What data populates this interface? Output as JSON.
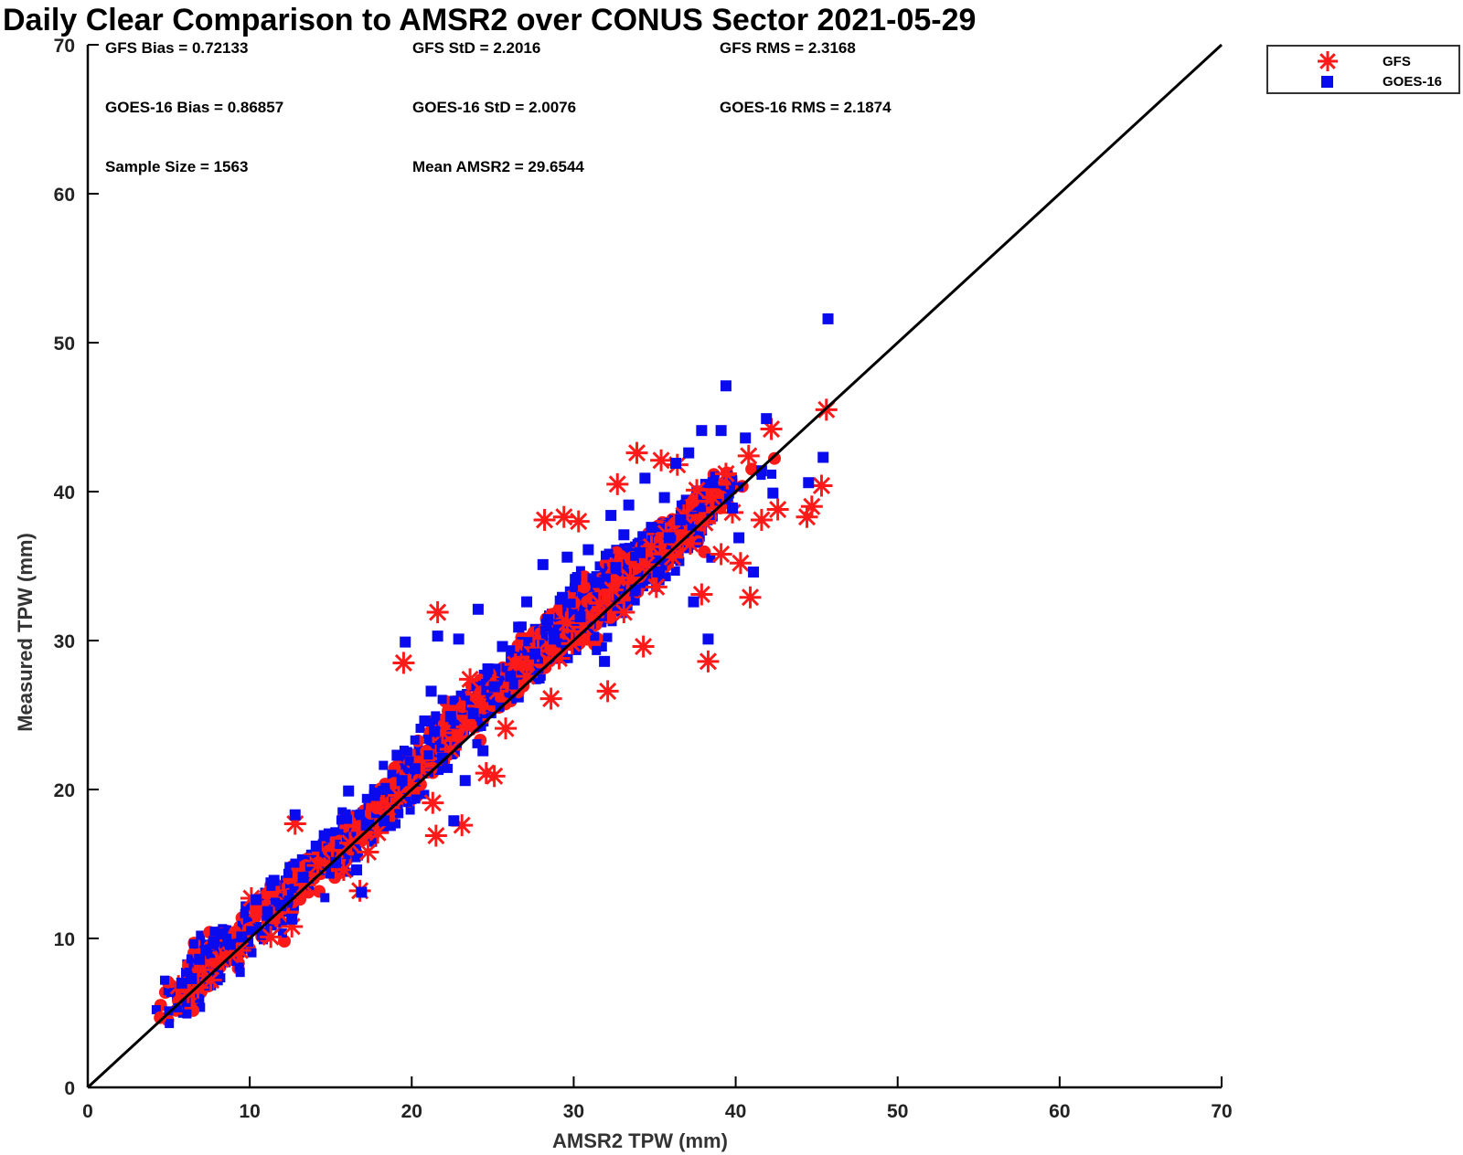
{
  "chart_data": {
    "type": "scatter",
    "title": "Daily Clear Comparison to AMSR2 over CONUS Sector 2021-05-29",
    "xlabel": "AMSR2 TPW (mm)",
    "ylabel": "Measured TPW (mm)",
    "xlim": [
      0,
      70
    ],
    "ylim": [
      0,
      70
    ],
    "xticks": [
      0,
      10,
      20,
      30,
      40,
      50,
      60,
      70
    ],
    "yticks": [
      0,
      10,
      20,
      30,
      40,
      50,
      60,
      70
    ],
    "grid": false,
    "legend_position": "outside-top-right",
    "reference_line": {
      "from": [
        0,
        0
      ],
      "to": [
        70,
        70
      ],
      "color": "#000000"
    },
    "stats": [
      {
        "text": "GFS Bias = 0.72133",
        "row": 0,
        "col": 0
      },
      {
        "text": "GFS StD = 2.2016",
        "row": 0,
        "col": 1
      },
      {
        "text": "GFS RMS = 2.3168",
        "row": 0,
        "col": 2
      },
      {
        "text": "GOES-16 Bias = 0.86857",
        "row": 1,
        "col": 0
      },
      {
        "text": "GOES-16 StD = 2.0076",
        "row": 1,
        "col": 1
      },
      {
        "text": "GOES-16 RMS = 2.1874",
        "row": 1,
        "col": 2
      },
      {
        "text": "Sample Size = 1563",
        "row": 2,
        "col": 0
      },
      {
        "text": "Mean AMSR2 = 29.6544",
        "row": 2,
        "col": 1
      }
    ],
    "series": [
      {
        "name": "GFS",
        "marker": "asterisk",
        "color": "#ff1a1a",
        "points": [
          [
            5.6,
            6.8
          ],
          [
            6.2,
            6.4
          ],
          [
            6.8,
            6.7
          ],
          [
            7.1,
            7.9
          ],
          [
            7.6,
            7.2
          ],
          [
            8.2,
            8.6
          ],
          [
            8.8,
            8.9
          ],
          [
            9.4,
            9.2
          ],
          [
            10.1,
            12.7
          ],
          [
            11.3,
            10.1
          ],
          [
            11.8,
            11.7
          ],
          [
            12.6,
            10.8
          ],
          [
            12.8,
            17.7
          ],
          [
            13.4,
            13.6
          ],
          [
            14.2,
            14.9
          ],
          [
            15.1,
            15.2
          ],
          [
            15.8,
            14.6
          ],
          [
            16.2,
            16.4
          ],
          [
            16.8,
            13.2
          ],
          [
            17.3,
            15.8
          ],
          [
            17.9,
            17.1
          ],
          [
            18.5,
            18.8
          ],
          [
            19.2,
            19.6
          ],
          [
            19.5,
            28.5
          ],
          [
            19.9,
            20.4
          ],
          [
            20.6,
            21.3
          ],
          [
            21.3,
            19.1
          ],
          [
            21.5,
            16.9
          ],
          [
            21.6,
            31.9
          ],
          [
            21.9,
            23.8
          ],
          [
            22.4,
            22.7
          ],
          [
            23.1,
            17.6
          ],
          [
            23.4,
            24.2
          ],
          [
            23.6,
            27.4
          ],
          [
            24.1,
            25.6
          ],
          [
            24.6,
            21.1
          ],
          [
            25.1,
            20.9
          ],
          [
            25.3,
            26.6
          ],
          [
            25.8,
            24.1
          ],
          [
            26.4,
            28.4
          ],
          [
            27.1,
            27.6
          ],
          [
            27.8,
            29.3
          ],
          [
            28.2,
            38.1
          ],
          [
            28.6,
            26.1
          ],
          [
            29.1,
            28.8
          ],
          [
            29.4,
            38.3
          ],
          [
            29.6,
            31.2
          ],
          [
            29.9,
            29.8
          ],
          [
            30.3,
            38.0
          ],
          [
            30.6,
            30.9
          ],
          [
            31.2,
            31.6
          ],
          [
            31.6,
            32.5
          ],
          [
            32.1,
            26.6
          ],
          [
            32.4,
            33.4
          ],
          [
            32.7,
            40.5
          ],
          [
            33.1,
            31.9
          ],
          [
            33.5,
            34.2
          ],
          [
            33.9,
            42.6
          ],
          [
            34.3,
            29.6
          ],
          [
            34.5,
            35.1
          ],
          [
            34.8,
            36.3
          ],
          [
            35.1,
            33.6
          ],
          [
            35.4,
            42.1
          ],
          [
            35.7,
            37.2
          ],
          [
            36.1,
            35.6
          ],
          [
            36.4,
            41.8
          ],
          [
            36.8,
            38.4
          ],
          [
            37.2,
            36.5
          ],
          [
            37.6,
            40.1
          ],
          [
            37.9,
            33.1
          ],
          [
            38.1,
            37.9
          ],
          [
            38.3,
            28.6
          ],
          [
            38.6,
            39.6
          ],
          [
            39.1,
            35.8
          ],
          [
            39.4,
            41.2
          ],
          [
            39.8,
            38.6
          ],
          [
            40.3,
            35.2
          ],
          [
            40.8,
            42.4
          ],
          [
            40.9,
            32.9
          ],
          [
            41.6,
            38.1
          ],
          [
            42.2,
            44.2
          ],
          [
            42.6,
            38.8
          ],
          [
            44.4,
            38.3
          ],
          [
            44.7,
            39.0
          ],
          [
            45.3,
            40.4
          ],
          [
            45.6,
            45.5
          ]
        ]
      },
      {
        "name": "GOES-16",
        "marker": "square",
        "color": "#0a0aee",
        "points": [
          [
            5.8,
            7.0
          ],
          [
            6.4,
            7.3
          ],
          [
            6.9,
            8.6
          ],
          [
            7.3,
            9.2
          ],
          [
            7.8,
            9.8
          ],
          [
            8.3,
            10.3
          ],
          [
            8.8,
            9.6
          ],
          [
            9.5,
            10.1
          ],
          [
            10.4,
            12.6
          ],
          [
            11.1,
            11.8
          ],
          [
            11.5,
            13.9
          ],
          [
            11.9,
            12.2
          ],
          [
            12.6,
            11.3
          ],
          [
            12.8,
            18.3
          ],
          [
            13.3,
            14.1
          ],
          [
            14.1,
            16.2
          ],
          [
            14.6,
            16.9
          ],
          [
            15.3,
            15.1
          ],
          [
            15.9,
            18.3
          ],
          [
            16.1,
            19.9
          ],
          [
            16.6,
            14.6
          ],
          [
            16.9,
            13.1
          ],
          [
            17.2,
            17.6
          ],
          [
            17.7,
            19.6
          ],
          [
            18.3,
            17.9
          ],
          [
            19.1,
            22.3
          ],
          [
            19.4,
            20.6
          ],
          [
            19.6,
            29.9
          ],
          [
            20.2,
            21.4
          ],
          [
            20.8,
            24.6
          ],
          [
            21.2,
            26.6
          ],
          [
            21.4,
            23.9
          ],
          [
            21.6,
            30.3
          ],
          [
            21.9,
            22.1
          ],
          [
            22.4,
            24.9
          ],
          [
            22.6,
            17.9
          ],
          [
            22.9,
            30.1
          ],
          [
            23.3,
            20.6
          ],
          [
            23.8,
            25.1
          ],
          [
            24.1,
            32.1
          ],
          [
            24.4,
            22.6
          ],
          [
            24.7,
            28.1
          ],
          [
            25.1,
            26.9
          ],
          [
            25.6,
            29.6
          ],
          [
            26.1,
            27.6
          ],
          [
            26.6,
            30.9
          ],
          [
            27.1,
            32.6
          ],
          [
            27.6,
            29.1
          ],
          [
            28.1,
            35.1
          ],
          [
            28.4,
            31.4
          ],
          [
            28.8,
            30.1
          ],
          [
            29.3,
            32.9
          ],
          [
            29.6,
            35.6
          ],
          [
            30.1,
            34.1
          ],
          [
            30.4,
            31.6
          ],
          [
            30.9,
            36.1
          ],
          [
            31.4,
            33.9
          ],
          [
            31.9,
            28.6
          ],
          [
            32.3,
            38.4
          ],
          [
            32.6,
            34.9
          ],
          [
            33.1,
            37.1
          ],
          [
            33.4,
            39.1
          ],
          [
            33.8,
            33.4
          ],
          [
            34.1,
            35.9
          ],
          [
            34.4,
            40.9
          ],
          [
            34.8,
            37.6
          ],
          [
            35.2,
            34.6
          ],
          [
            35.6,
            39.6
          ],
          [
            35.9,
            36.9
          ],
          [
            36.3,
            41.9
          ],
          [
            36.6,
            38.1
          ],
          [
            37.1,
            42.6
          ],
          [
            37.4,
            32.6
          ],
          [
            37.9,
            44.1
          ],
          [
            38.3,
            30.1
          ],
          [
            38.6,
            40.6
          ],
          [
            39.1,
            44.1
          ],
          [
            39.4,
            47.1
          ],
          [
            39.8,
            38.9
          ],
          [
            40.2,
            36.9
          ],
          [
            40.6,
            43.6
          ],
          [
            41.1,
            34.6
          ],
          [
            41.6,
            41.4
          ],
          [
            41.9,
            44.9
          ],
          [
            42.3,
            39.9
          ],
          [
            44.5,
            40.6
          ],
          [
            45.4,
            42.3
          ],
          [
            45.7,
            51.6
          ]
        ]
      }
    ]
  }
}
